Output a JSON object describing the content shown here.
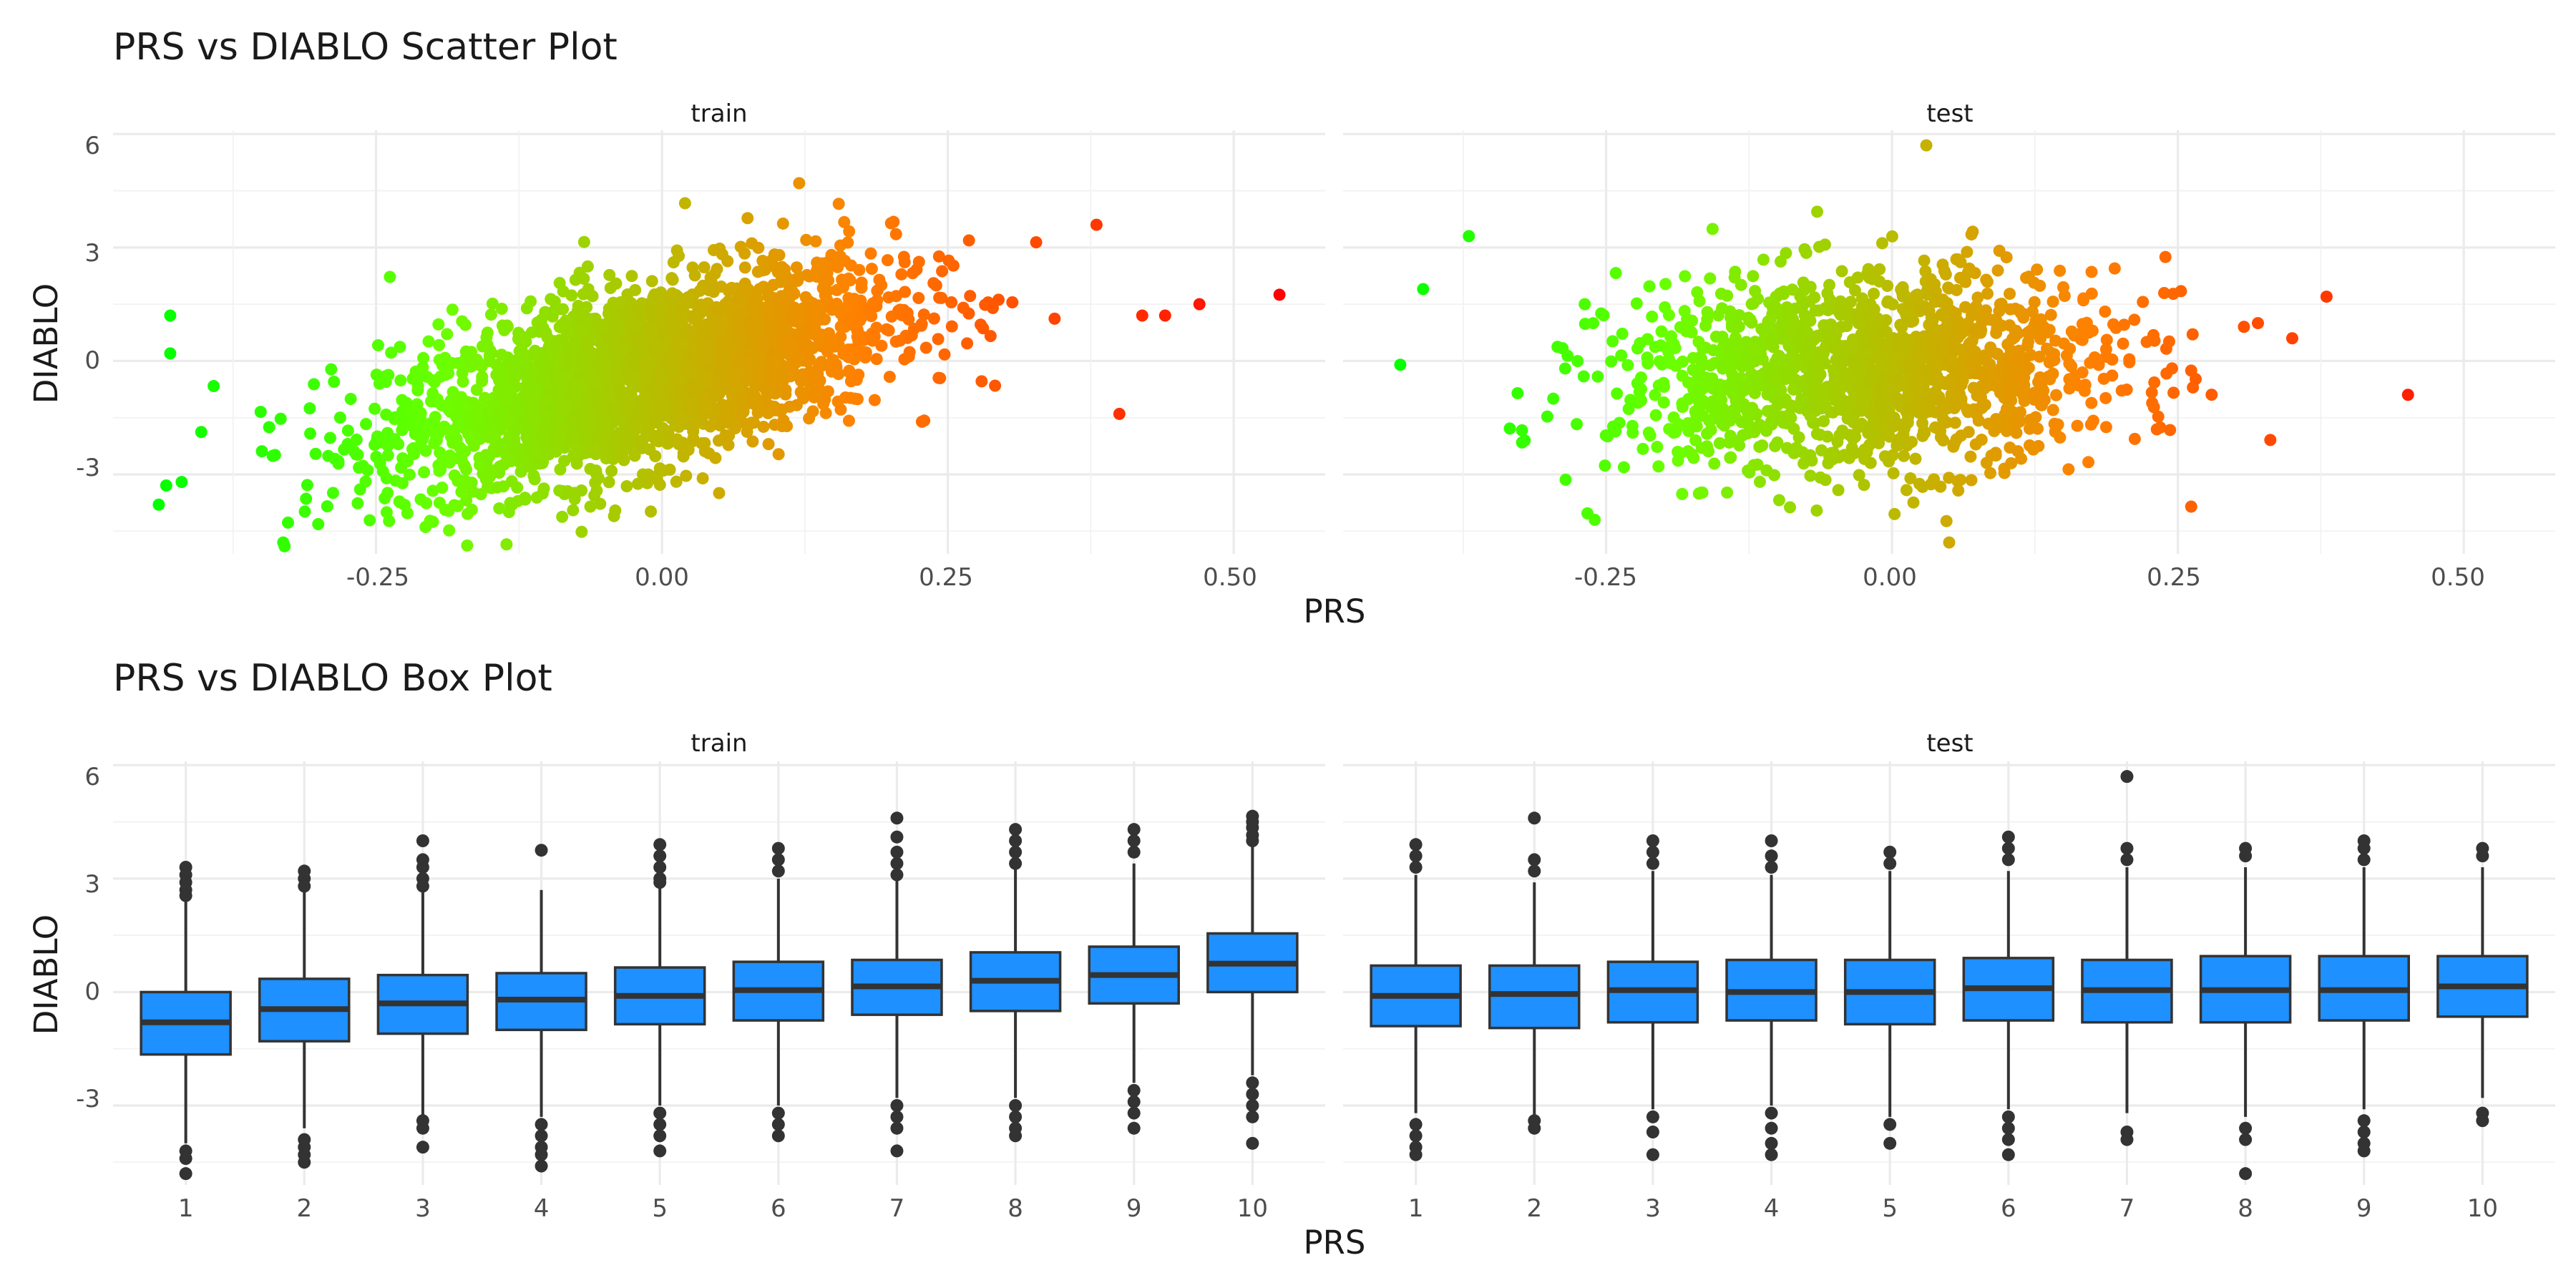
{
  "chart_data": [
    {
      "type": "scatter",
      "title": "PRS vs DIABLO Scatter Plot",
      "xlabel": "PRS",
      "ylabel": "DIABLO",
      "xlim": [
        -0.48,
        0.58
      ],
      "ylim": [
        -5.1,
        6.1
      ],
      "x_ticks": [
        "-0.25",
        "0.00",
        "0.25",
        "0.50"
      ],
      "y_ticks": [
        "6",
        "3",
        "0",
        "-3"
      ],
      "color_scale": {
        "low": "#00ff00",
        "high": "#ff0000",
        "mapped_to": "PRS"
      },
      "grid": true,
      "panels": [
        {
          "name": "train",
          "n_points_approx": 20000,
          "x_range": [
            -0.45,
            0.54
          ],
          "y_range": [
            -4.9,
            4.7
          ],
          "correlation_approx": 0.4,
          "notable_points": [
            {
              "x": -0.43,
              "y": 1.2
            },
            {
              "x": -0.43,
              "y": 0.2
            },
            {
              "x": -0.44,
              "y": -3.8
            },
            {
              "x": -0.42,
              "y": -3.2
            },
            {
              "x": -0.33,
              "y": -4.9
            },
            {
              "x": 0.42,
              "y": 1.2
            },
            {
              "x": 0.44,
              "y": 1.2
            },
            {
              "x": 0.47,
              "y": 1.5
            },
            {
              "x": 0.54,
              "y": 1.75
            },
            {
              "x": 0.4,
              "y": -1.4
            },
            {
              "x": 0.38,
              "y": 3.6
            },
            {
              "x": 0.12,
              "y": 4.7
            }
          ]
        },
        {
          "name": "test",
          "n_points_approx": 6000,
          "x_range": [
            -0.43,
            0.38
          ],
          "y_range": [
            -4.8,
            5.7
          ],
          "correlation_approx": 0.1,
          "notable_points": [
            {
              "x": -0.43,
              "y": -0.1
            },
            {
              "x": -0.41,
              "y": 1.9
            },
            {
              "x": -0.37,
              "y": 3.3
            },
            {
              "x": -0.26,
              "y": -4.2
            },
            {
              "x": 0.03,
              "y": 5.7
            },
            {
              "x": 0.35,
              "y": 0.6
            },
            {
              "x": 0.38,
              "y": 1.7
            },
            {
              "x": 0.32,
              "y": 1.0
            },
            {
              "x": 0.05,
              "y": -4.8
            }
          ]
        }
      ]
    },
    {
      "type": "box",
      "title": "PRS vs DIABLO Box Plot",
      "xlabel": "PRS",
      "ylabel": "DIABLO",
      "categories": [
        "1",
        "2",
        "3",
        "4",
        "5",
        "6",
        "7",
        "8",
        "9",
        "10"
      ],
      "ylim": [
        -5.1,
        6.1
      ],
      "y_ticks": [
        "6",
        "3",
        "0",
        "-3"
      ],
      "box_fill": "#1e90ff",
      "grid": true,
      "panels": [
        {
          "name": "train",
          "boxes": [
            {
              "q1": -1.65,
              "median": -0.8,
              "q3": 0.0,
              "lower": -4.0,
              "upper": 2.45,
              "outliers": [
                3.3,
                3.1,
                2.9,
                2.7,
                2.55,
                -4.2,
                -4.4,
                -4.8
              ]
            },
            {
              "q1": -1.3,
              "median": -0.45,
              "q3": 0.35,
              "lower": -3.6,
              "upper": 2.7,
              "outliers": [
                3.2,
                3.0,
                2.8,
                -3.9,
                -4.1,
                -4.3,
                -4.5
              ]
            },
            {
              "q1": -1.1,
              "median": -0.3,
              "q3": 0.45,
              "lower": -3.3,
              "upper": 2.7,
              "outliers": [
                4.0,
                3.5,
                3.3,
                3.0,
                2.8,
                -3.4,
                -3.6,
                -4.1
              ]
            },
            {
              "q1": -1.0,
              "median": -0.2,
              "q3": 0.5,
              "lower": -3.3,
              "upper": 2.7,
              "outliers": [
                3.75,
                -3.5,
                -3.8,
                -4.1,
                -4.3,
                -4.6
              ]
            },
            {
              "q1": -0.85,
              "median": -0.1,
              "q3": 0.65,
              "lower": -3.0,
              "upper": 2.8,
              "outliers": [
                3.9,
                3.6,
                3.3,
                3.0,
                2.9,
                -3.2,
                -3.5,
                -3.8,
                -4.2
              ]
            },
            {
              "q1": -0.75,
              "median": 0.05,
              "q3": 0.8,
              "lower": -3.0,
              "upper": 3.0,
              "outliers": [
                3.8,
                3.5,
                3.2,
                -3.2,
                -3.5,
                -3.8
              ]
            },
            {
              "q1": -0.6,
              "median": 0.15,
              "q3": 0.85,
              "lower": -2.8,
              "upper": 3.0,
              "outliers": [
                4.6,
                4.1,
                3.7,
                3.4,
                3.1,
                -3.0,
                -3.3,
                -3.6,
                -4.2
              ]
            },
            {
              "q1": -0.5,
              "median": 0.3,
              "q3": 1.05,
              "lower": -2.8,
              "upper": 3.3,
              "outliers": [
                4.3,
                4.0,
                3.7,
                3.4,
                -3.0,
                -3.3,
                -3.6,
                -3.8
              ]
            },
            {
              "q1": -0.3,
              "median": 0.45,
              "q3": 1.2,
              "lower": -2.4,
              "upper": 3.4,
              "outliers": [
                4.3,
                4.0,
                3.7,
                -2.6,
                -2.9,
                -3.2,
                -3.6
              ]
            },
            {
              "q1": 0.0,
              "median": 0.75,
              "q3": 1.55,
              "lower": -2.2,
              "upper": 3.9,
              "outliers": [
                4.65,
                4.5,
                4.35,
                4.15,
                4.0,
                -2.4,
                -2.7,
                -3.0,
                -3.3,
                -4.0
              ]
            }
          ]
        },
        {
          "name": "test",
          "boxes": [
            {
              "q1": -0.9,
              "median": -0.1,
              "q3": 0.7,
              "lower": -3.2,
              "upper": 3.1,
              "outliers": [
                3.9,
                3.6,
                3.3,
                -3.5,
                -3.8,
                -4.1,
                -4.3
              ]
            },
            {
              "q1": -0.95,
              "median": -0.05,
              "q3": 0.7,
              "lower": -3.3,
              "upper": 2.9,
              "outliers": [
                4.6,
                3.5,
                3.2,
                -3.4,
                -3.6
              ]
            },
            {
              "q1": -0.8,
              "median": 0.05,
              "q3": 0.8,
              "lower": -3.1,
              "upper": 3.2,
              "outliers": [
                4.0,
                3.7,
                3.4,
                -3.3,
                -3.7,
                -4.3
              ]
            },
            {
              "q1": -0.75,
              "median": 0.0,
              "q3": 0.85,
              "lower": -3.0,
              "upper": 3.1,
              "outliers": [
                4.0,
                3.6,
                3.3,
                -3.2,
                -3.6,
                -4.0,
                -4.3
              ]
            },
            {
              "q1": -0.85,
              "median": 0.0,
              "q3": 0.85,
              "lower": -3.3,
              "upper": 3.2,
              "outliers": [
                3.7,
                3.4,
                -3.5,
                -4.0
              ]
            },
            {
              "q1": -0.75,
              "median": 0.1,
              "q3": 0.9,
              "lower": -3.1,
              "upper": 3.2,
              "outliers": [
                4.1,
                3.8,
                3.5,
                -3.3,
                -3.6,
                -3.9,
                -4.3
              ]
            },
            {
              "q1": -0.8,
              "median": 0.05,
              "q3": 0.85,
              "lower": -3.2,
              "upper": 3.3,
              "outliers": [
                5.7,
                3.8,
                3.5,
                -3.7,
                -3.9
              ]
            },
            {
              "q1": -0.8,
              "median": 0.05,
              "q3": 0.95,
              "lower": -3.3,
              "upper": 3.3,
              "outliers": [
                3.8,
                3.6,
                -3.6,
                -3.9,
                -4.8
              ]
            },
            {
              "q1": -0.75,
              "median": 0.05,
              "q3": 0.95,
              "lower": -3.1,
              "upper": 3.3,
              "outliers": [
                4.0,
                3.8,
                3.5,
                -3.4,
                -3.7,
                -4.0,
                -4.2
              ]
            },
            {
              "q1": -0.65,
              "median": 0.15,
              "q3": 0.95,
              "lower": -2.8,
              "upper": 3.3,
              "outliers": [
                3.8,
                3.6,
                -3.2,
                -3.4
              ]
            }
          ]
        }
      ]
    }
  ]
}
